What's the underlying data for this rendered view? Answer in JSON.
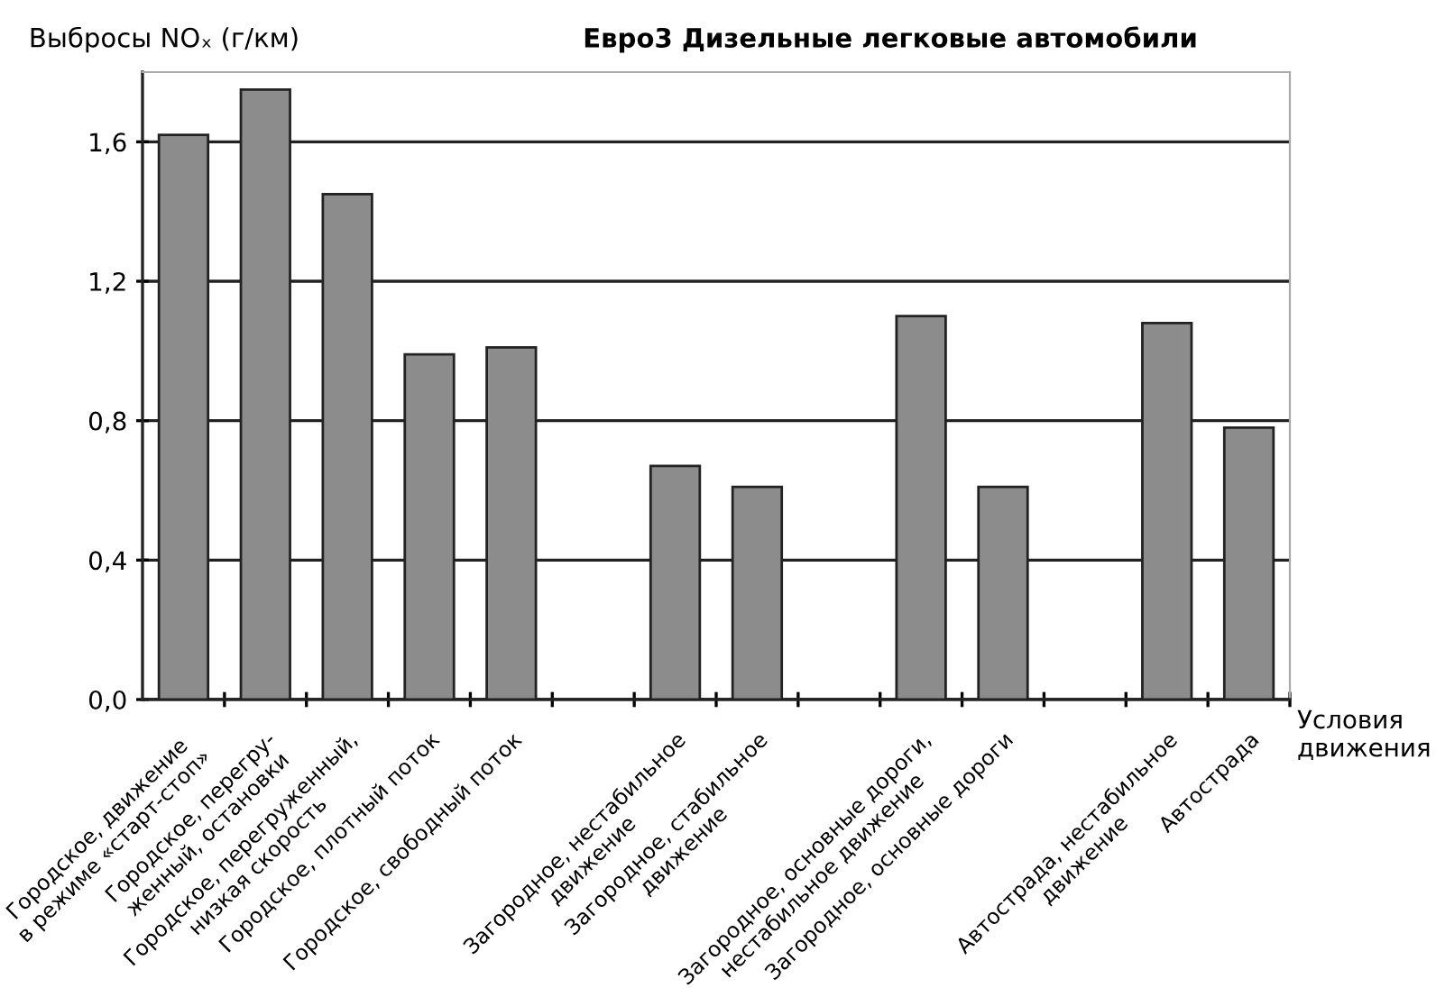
{
  "chart_data": {
    "type": "bar",
    "title": "Евро3 Дизельные легковые автомобили",
    "ylabel": "Выбросы NOₓ (г/км)",
    "xlabel": "Условия движения",
    "categories": [
      "Городское, движение\nв режиме «старт-стоп»",
      "Городское, перегру-\nженный, остановки",
      "Городское, перегруженный,\nнизкая скорость",
      "Городское, плотный поток",
      "Городское, свободный поток",
      null,
      "Загородное, нестабильное\nдвижение",
      "Загородное, стабильное\nдвижение",
      null,
      "Загородное, основные дороги,\nнестабильное движение",
      "Загородное, основные дороги",
      null,
      "Автострада, нестабильное\nдвижение",
      "Автострада"
    ],
    "values": [
      1.62,
      1.75,
      1.45,
      0.99,
      1.01,
      null,
      0.67,
      0.61,
      null,
      1.1,
      0.61,
      null,
      1.08,
      0.78
    ],
    "color": "#8c8c8c",
    "ylim": [
      0,
      1.8
    ],
    "yticks": [
      {
        "value": 0,
        "label": "0,0"
      },
      {
        "value": 0.4,
        "label": "0,4"
      },
      {
        "value": 0.8,
        "label": "0,8"
      },
      {
        "value": 1.2,
        "label": "1,2"
      },
      {
        "value": 1.6,
        "label": "1,6"
      }
    ],
    "grid": "y",
    "legend": false
  }
}
